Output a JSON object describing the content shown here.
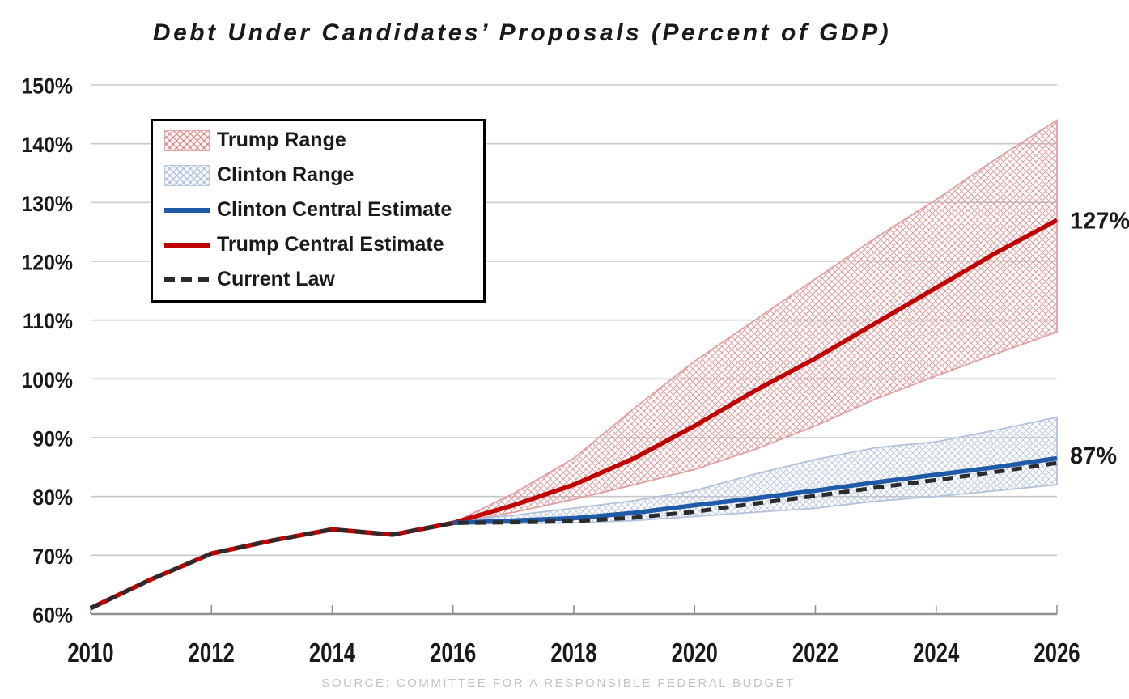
{
  "chart_data": {
    "type": "line",
    "title": "Debt Under Candidates’ Proposals (Percent of GDP)",
    "source": "SOURCE: COMMITTEE FOR A RESPONSIBLE FEDERAL BUDGET",
    "xlabel": "",
    "ylabel": "",
    "xlim": [
      2010,
      2026
    ],
    "ylim": [
      60,
      150
    ],
    "grid": true,
    "legend_position": "top-left",
    "x_ticks": [
      2010,
      2012,
      2014,
      2016,
      2018,
      2020,
      2022,
      2024,
      2026
    ],
    "y_ticks": [
      {
        "value": 60,
        "label": "60%"
      },
      {
        "value": 70,
        "label": "70%"
      },
      {
        "value": 80,
        "label": "80%"
      },
      {
        "value": 90,
        "label": "90%"
      },
      {
        "value": 100,
        "label": "100%"
      },
      {
        "value": 110,
        "label": "110%"
      },
      {
        "value": 120,
        "label": "120%"
      },
      {
        "value": 130,
        "label": "130%"
      },
      {
        "value": 140,
        "label": "140%"
      },
      {
        "value": 150,
        "label": "150%"
      }
    ],
    "bands": [
      {
        "name": "Trump Range",
        "hatch_color": "#D98C8C",
        "edge_color": "#E2A0A0",
        "x": [
          2016,
          2017,
          2018,
          2019,
          2020,
          2021,
          2022,
          2023,
          2024,
          2025,
          2026
        ],
        "upper": [
          75.5,
          80.5,
          86.5,
          95,
          103,
          110,
          117,
          124,
          130.5,
          137.5,
          144
        ],
        "lower": [
          75.5,
          77.3,
          79.5,
          82,
          84.6,
          88,
          92,
          96.6,
          100.5,
          104.3,
          108
        ]
      },
      {
        "name": "Clinton Range",
        "hatch_color": "#AEBEDB",
        "edge_color": "#B3C2DD",
        "x": [
          2016,
          2017,
          2018,
          2019,
          2020,
          2021,
          2022,
          2023,
          2024,
          2025,
          2026
        ],
        "upper": [
          75.8,
          76.8,
          78,
          79.3,
          81,
          83.8,
          86.3,
          88.3,
          89.3,
          91.3,
          93.5
        ],
        "lower": [
          75.3,
          75.4,
          75.5,
          75.9,
          76.6,
          77.3,
          78,
          79.2,
          80,
          81,
          82
        ]
      }
    ],
    "series": [
      {
        "name": "Trump Central Estimate",
        "color": "#C00000",
        "width": 5.5,
        "dash": null,
        "x": [
          2010,
          2011,
          2012,
          2013,
          2014,
          2015,
          2016,
          2017,
          2018,
          2019,
          2020,
          2021,
          2022,
          2023,
          2024,
          2025,
          2026
        ],
        "values": [
          61,
          65.9,
          70.3,
          72.5,
          74.4,
          73.5,
          75.5,
          78.5,
          82,
          86.5,
          92,
          98,
          103.5,
          109.5,
          115.5,
          121.5,
          127
        ]
      },
      {
        "name": "Clinton Central Estimate",
        "color": "#1F5AA8",
        "width": 5.5,
        "dash": null,
        "x": [
          2016,
          2017,
          2018,
          2019,
          2020,
          2021,
          2022,
          2023,
          2024,
          2025,
          2026
        ],
        "values": [
          75.5,
          75.9,
          76.3,
          77.2,
          78.5,
          79.7,
          81,
          82.4,
          83.7,
          85,
          86.5
        ]
      },
      {
        "name": "Current Law",
        "color": "#2B2B2B",
        "width": 5,
        "dash": [
          13,
          8.5
        ],
        "x": [
          2010,
          2011,
          2012,
          2013,
          2014,
          2015,
          2016,
          2017,
          2018,
          2019,
          2020,
          2021,
          2022,
          2023,
          2024,
          2025,
          2026
        ],
        "values": [
          61,
          65.9,
          70.3,
          72.5,
          74.4,
          73.5,
          75.5,
          75.6,
          75.8,
          76.4,
          77.4,
          78.8,
          80.1,
          81.5,
          82.8,
          84.2,
          85.7
        ]
      }
    ],
    "annotations": [
      {
        "text": "127%",
        "color": "#C00000",
        "year": 2026,
        "value": 127
      },
      {
        "text": "87%",
        "color": "#1E3E76",
        "year": 2026,
        "value": 87
      }
    ]
  },
  "legend": {
    "items": [
      {
        "label": "Trump Range",
        "swatch": "hatch-red"
      },
      {
        "label": "Clinton Range",
        "swatch": "hatch-blue"
      },
      {
        "label": "Clinton Central Estimate",
        "swatch": "line-blue"
      },
      {
        "label": "Trump Central Estimate",
        "swatch": "line-red"
      },
      {
        "label": "Current Law",
        "swatch": "dash-dark"
      }
    ]
  },
  "styles": {
    "gridline_color": "#C8C8C8",
    "axis_color": "#909090",
    "label_color": "#1a1a1a",
    "source_color": "#C2C2C2"
  }
}
